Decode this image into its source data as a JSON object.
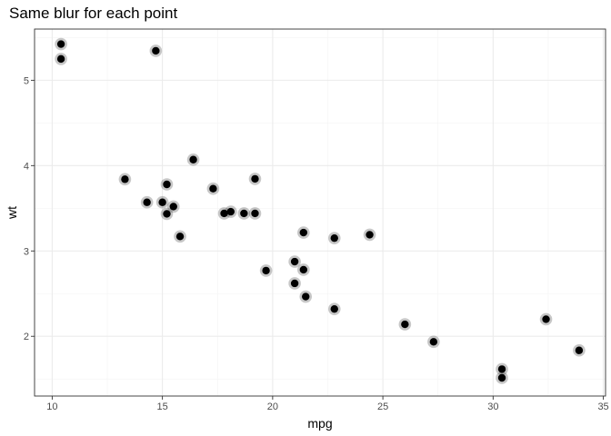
{
  "chart_data": {
    "type": "scatter",
    "title": "Same blur for each point",
    "xlabel": "mpg",
    "ylabel": "wt",
    "xlim": [
      9.2,
      35.1
    ],
    "ylim": [
      1.3,
      5.6
    ],
    "x_ticks": [
      10,
      15,
      20,
      25,
      30,
      35
    ],
    "y_ticks": [
      2,
      3,
      4,
      5
    ],
    "grid": true,
    "theme": "bw",
    "point_color": "#000000",
    "points": [
      {
        "x": 21.0,
        "y": 2.62
      },
      {
        "x": 21.0,
        "y": 2.875
      },
      {
        "x": 22.8,
        "y": 2.32
      },
      {
        "x": 21.4,
        "y": 3.215
      },
      {
        "x": 18.7,
        "y": 3.44
      },
      {
        "x": 18.1,
        "y": 3.46
      },
      {
        "x": 14.3,
        "y": 3.57
      },
      {
        "x": 24.4,
        "y": 3.19
      },
      {
        "x": 22.8,
        "y": 3.15
      },
      {
        "x": 19.2,
        "y": 3.44
      },
      {
        "x": 17.8,
        "y": 3.44
      },
      {
        "x": 16.4,
        "y": 4.07
      },
      {
        "x": 17.3,
        "y": 3.73
      },
      {
        "x": 15.2,
        "y": 3.78
      },
      {
        "x": 10.4,
        "y": 5.25
      },
      {
        "x": 10.4,
        "y": 5.424
      },
      {
        "x": 14.7,
        "y": 5.345
      },
      {
        "x": 32.4,
        "y": 2.2
      },
      {
        "x": 30.4,
        "y": 1.615
      },
      {
        "x": 33.9,
        "y": 1.835
      },
      {
        "x": 21.5,
        "y": 2.465
      },
      {
        "x": 15.5,
        "y": 3.52
      },
      {
        "x": 15.2,
        "y": 3.435
      },
      {
        "x": 13.3,
        "y": 3.84
      },
      {
        "x": 19.2,
        "y": 3.845
      },
      {
        "x": 27.3,
        "y": 1.935
      },
      {
        "x": 26.0,
        "y": 2.14
      },
      {
        "x": 30.4,
        "y": 1.513
      },
      {
        "x": 15.8,
        "y": 3.17
      },
      {
        "x": 19.7,
        "y": 2.77
      },
      {
        "x": 15.0,
        "y": 3.57
      },
      {
        "x": 21.4,
        "y": 2.78
      }
    ]
  }
}
